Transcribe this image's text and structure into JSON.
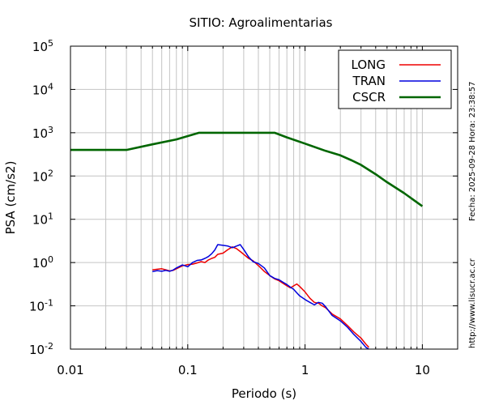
{
  "chart_data": {
    "type": "line",
    "title": "SITIO: Agroalimentarias",
    "xlabel": "Periodo (s)",
    "ylabel": "PSA (cm/s2)",
    "xscale": "log",
    "yscale": "log",
    "xlim": [
      0.01,
      20
    ],
    "ylim": [
      0.01,
      100000
    ],
    "grid": true,
    "legend_position": "top-right",
    "x_ticks": [
      {
        "value": 0.01,
        "label": "0.01"
      },
      {
        "value": 0.1,
        "label": "0.1"
      },
      {
        "value": 1,
        "label": "1"
      },
      {
        "value": 10,
        "label": "10"
      }
    ],
    "y_ticks": [
      {
        "value": 0.01,
        "base": "10",
        "exp": "-2"
      },
      {
        "value": 0.1,
        "base": "10",
        "exp": "-1"
      },
      {
        "value": 1,
        "base": "10",
        "exp": "0"
      },
      {
        "value": 10,
        "base": "10",
        "exp": "1"
      },
      {
        "value": 100,
        "base": "10",
        "exp": "2"
      },
      {
        "value": 1000,
        "base": "10",
        "exp": "3"
      },
      {
        "value": 10000,
        "base": "10",
        "exp": "4"
      },
      {
        "value": 100000,
        "base": "10",
        "exp": "5"
      }
    ],
    "series": [
      {
        "name": "LONG",
        "color": "#ee0000",
        "x": [
          0.05,
          0.055,
          0.06,
          0.065,
          0.07,
          0.075,
          0.08,
          0.09,
          0.1,
          0.11,
          0.12,
          0.13,
          0.14,
          0.15,
          0.16,
          0.17,
          0.18,
          0.2,
          0.22,
          0.24,
          0.26,
          0.28,
          0.3,
          0.33,
          0.36,
          0.4,
          0.45,
          0.5,
          0.55,
          0.6,
          0.65,
          0.7,
          0.75,
          0.8,
          0.85,
          0.9,
          1.0,
          1.1,
          1.2,
          1.3,
          1.4,
          1.5,
          1.7,
          2.0,
          2.3,
          2.6,
          3.0,
          3.3,
          3.5
        ],
        "y": [
          0.68,
          0.7,
          0.72,
          0.68,
          0.64,
          0.66,
          0.72,
          0.84,
          0.9,
          0.92,
          0.98,
          1.05,
          1.0,
          1.15,
          1.25,
          1.32,
          1.55,
          1.65,
          2.0,
          2.3,
          2.1,
          1.8,
          1.55,
          1.25,
          1.1,
          0.85,
          0.62,
          0.5,
          0.42,
          0.38,
          0.33,
          0.29,
          0.26,
          0.29,
          0.32,
          0.28,
          0.21,
          0.15,
          0.12,
          0.115,
          0.1,
          0.09,
          0.065,
          0.05,
          0.035,
          0.025,
          0.018,
          0.013,
          0.011
        ]
      },
      {
        "name": "TRAN",
        "color": "#0000dd",
        "x": [
          0.05,
          0.055,
          0.06,
          0.065,
          0.07,
          0.075,
          0.08,
          0.09,
          0.1,
          0.11,
          0.12,
          0.13,
          0.14,
          0.15,
          0.16,
          0.17,
          0.18,
          0.2,
          0.22,
          0.24,
          0.26,
          0.28,
          0.3,
          0.33,
          0.36,
          0.4,
          0.45,
          0.5,
          0.55,
          0.6,
          0.65,
          0.7,
          0.75,
          0.8,
          0.85,
          0.9,
          1.0,
          1.1,
          1.2,
          1.3,
          1.4,
          1.5,
          1.7,
          2.0,
          2.3,
          2.6,
          3.0,
          3.3,
          3.5
        ],
        "y": [
          0.62,
          0.65,
          0.63,
          0.66,
          0.63,
          0.67,
          0.75,
          0.88,
          0.8,
          1.0,
          1.12,
          1.15,
          1.25,
          1.38,
          1.6,
          1.95,
          2.6,
          2.5,
          2.4,
          2.2,
          2.4,
          2.6,
          2.0,
          1.35,
          1.05,
          0.95,
          0.75,
          0.5,
          0.43,
          0.4,
          0.35,
          0.31,
          0.27,
          0.24,
          0.2,
          0.17,
          0.14,
          0.12,
          0.105,
          0.12,
          0.115,
          0.095,
          0.06,
          0.045,
          0.032,
          0.022,
          0.015,
          0.011,
          0.01
        ]
      },
      {
        "name": "CSCR",
        "color": "#006600",
        "x": [
          0.01,
          0.03,
          0.05,
          0.08,
          0.125,
          0.2,
          0.35,
          0.55,
          0.7,
          1.0,
          1.5,
          2.0,
          2.5,
          3.0,
          4.0,
          5.0,
          7.0,
          10.0
        ],
        "y": [
          400,
          400,
          540,
          700,
          1000,
          1000,
          1000,
          1000,
          780,
          560,
          380,
          300,
          230,
          180,
          110,
          72,
          40,
          20
        ]
      }
    ]
  },
  "side_text": {
    "timestamp": "Fecha: 2025-09-28 Hora: 23:38:57",
    "url": "http://www.lisucr.ac.cr"
  }
}
